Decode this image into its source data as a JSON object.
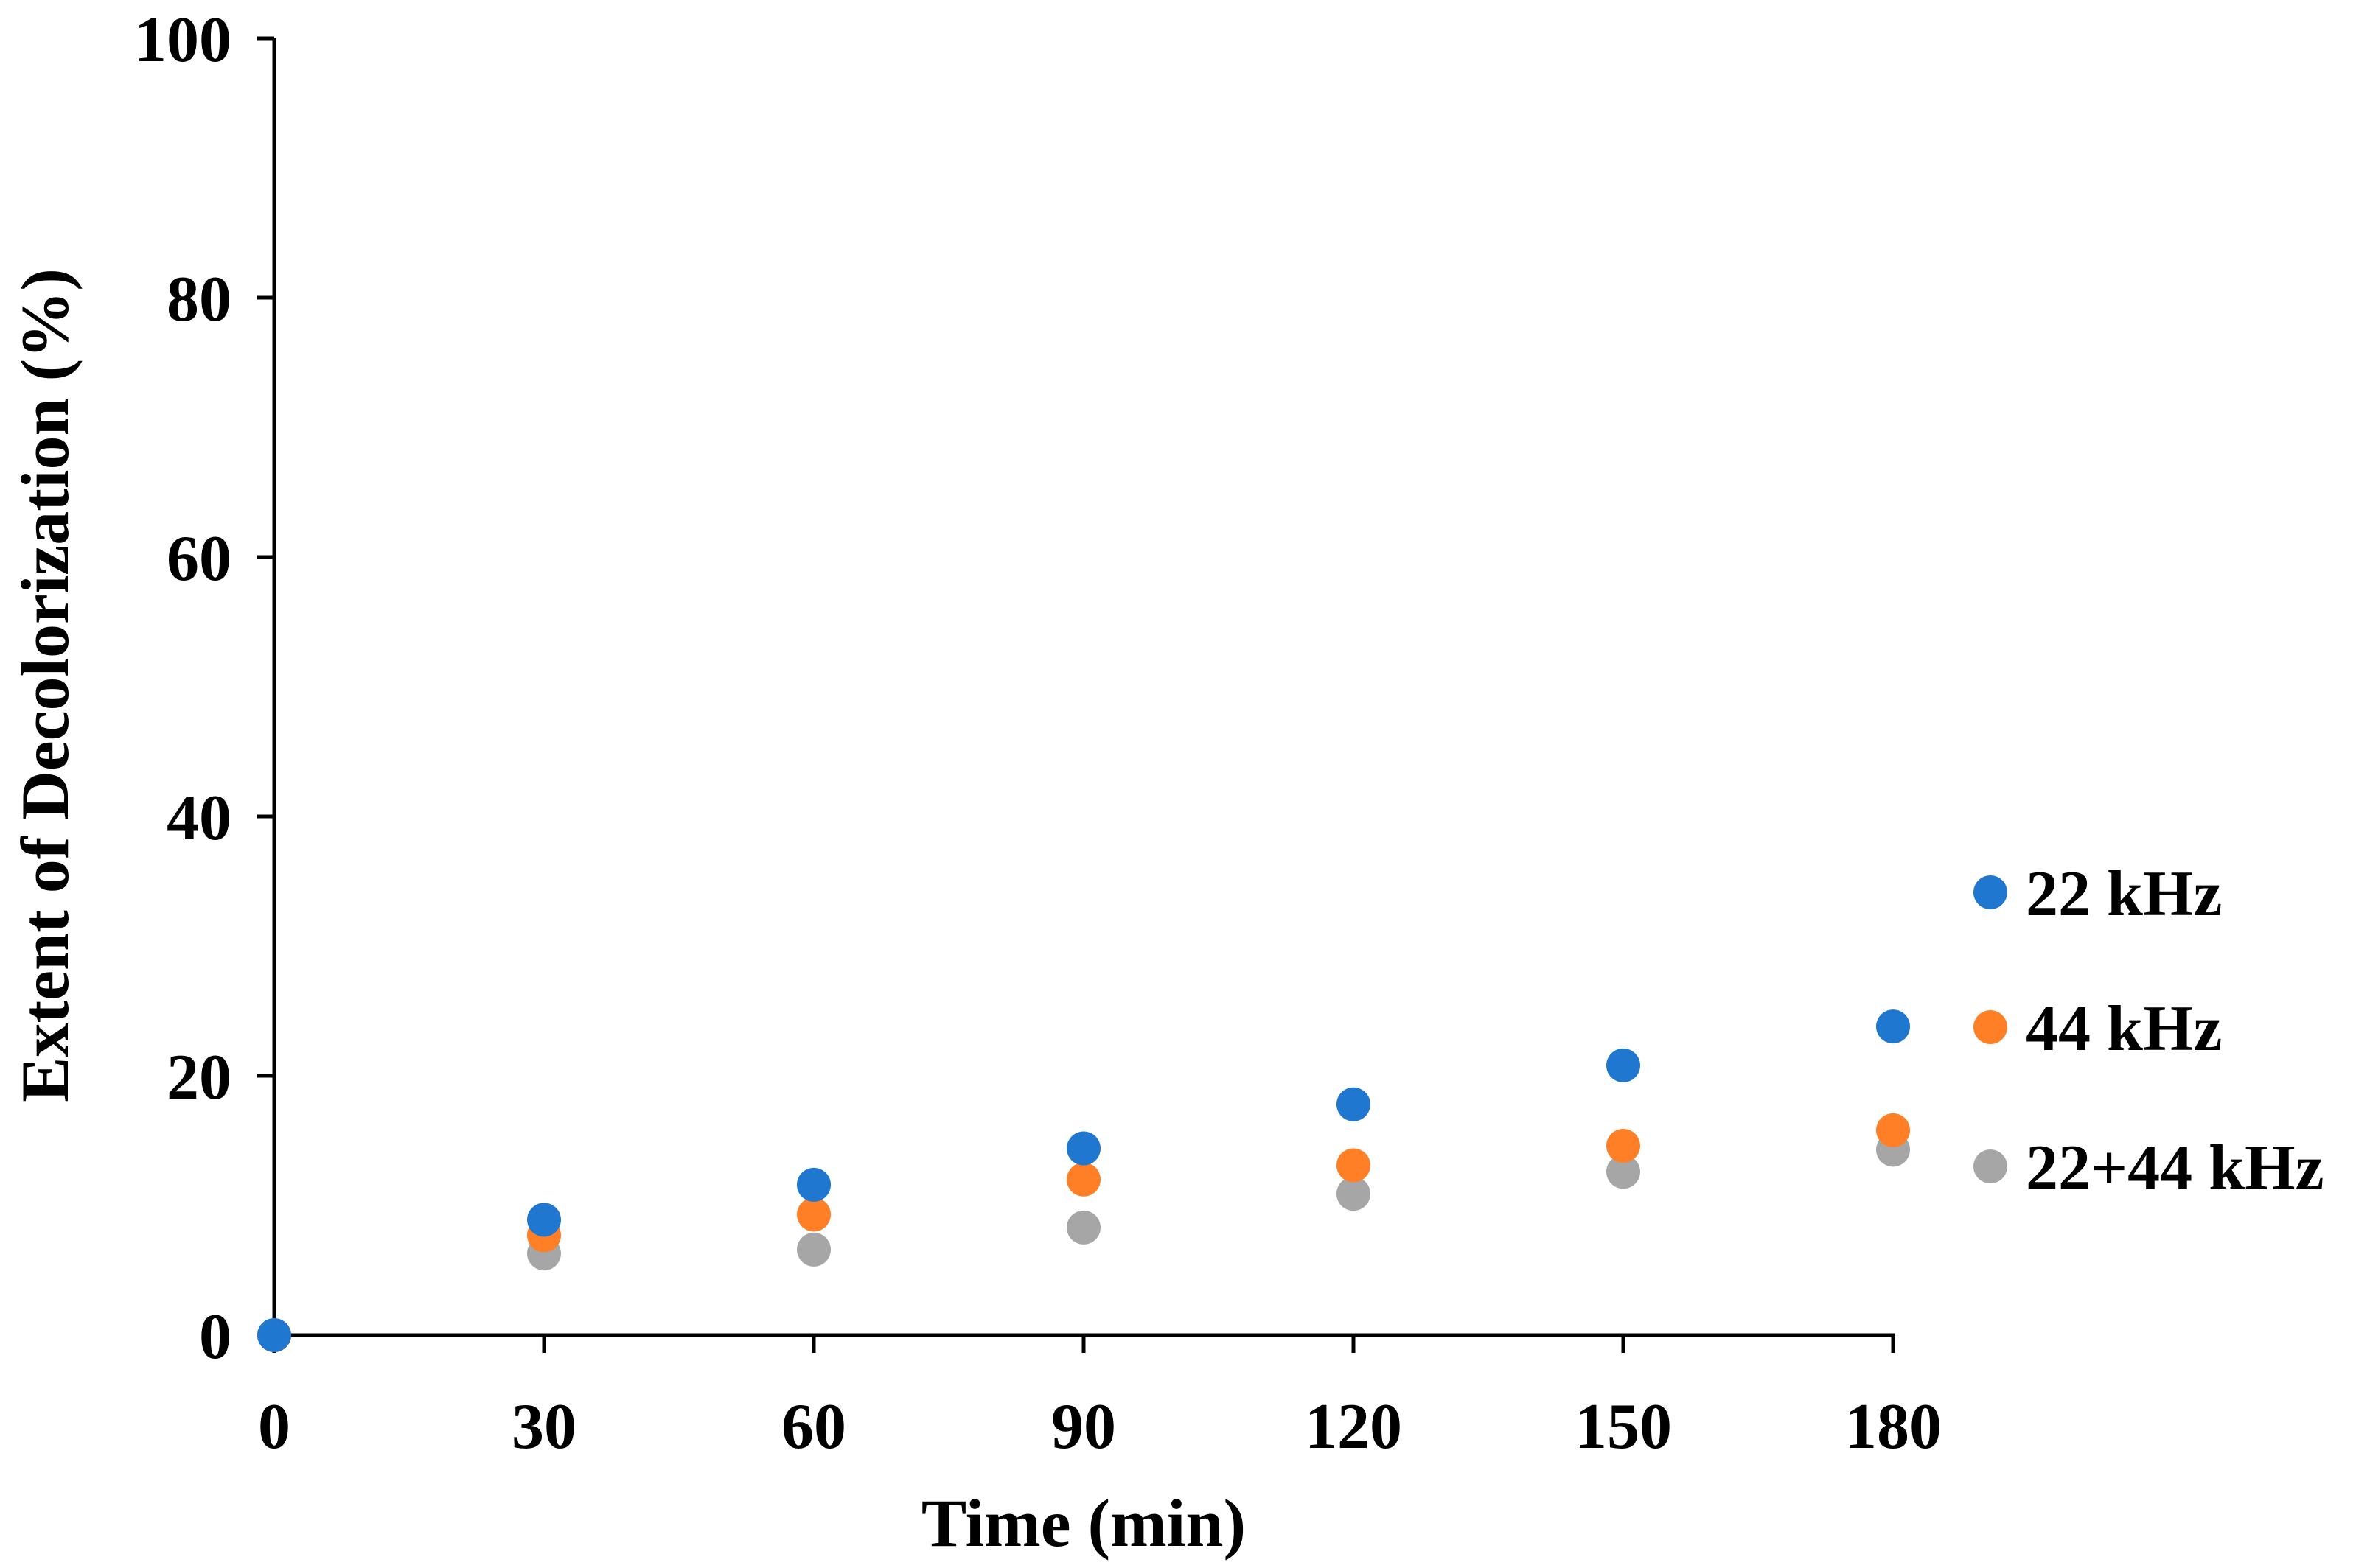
{
  "chart_data": {
    "type": "scatter",
    "title": "",
    "xlabel": "Time (min)",
    "ylabel": "Extent of Decolorization (%)",
    "xlim": [
      0,
      180
    ],
    "ylim": [
      0,
      100
    ],
    "xticks": [
      0,
      30,
      60,
      90,
      120,
      150,
      180
    ],
    "yticks": [
      0,
      20,
      40,
      60,
      80,
      100
    ],
    "xtick_labels": [
      "0",
      "30",
      "60",
      "90",
      "120",
      "150",
      "180"
    ],
    "ytick_labels": [
      "0",
      "20",
      "40",
      "60",
      "80",
      "100"
    ],
    "grid": false,
    "legend_position": "right",
    "series": [
      {
        "name": "22 kHz",
        "color": "#1f77d0",
        "x": [
          0,
          30,
          60,
          90,
          120,
          150,
          180
        ],
        "y": [
          0,
          8.9,
          11.6,
          14.4,
          17.8,
          20.8,
          23.8
        ]
      },
      {
        "name": "44 kHz",
        "color": "#ff7f27",
        "x": [
          0,
          30,
          60,
          90,
          120,
          150,
          180
        ],
        "y": [
          0,
          7.7,
          9.3,
          12.0,
          13.1,
          14.6,
          15.8
        ]
      },
      {
        "name": "22+44 kHz",
        "color": "#a6a6a6",
        "x": [
          0,
          30,
          60,
          90,
          120,
          150,
          180
        ],
        "y": [
          0,
          6.3,
          6.6,
          8.3,
          10.9,
          12.6,
          14.3
        ]
      }
    ]
  }
}
